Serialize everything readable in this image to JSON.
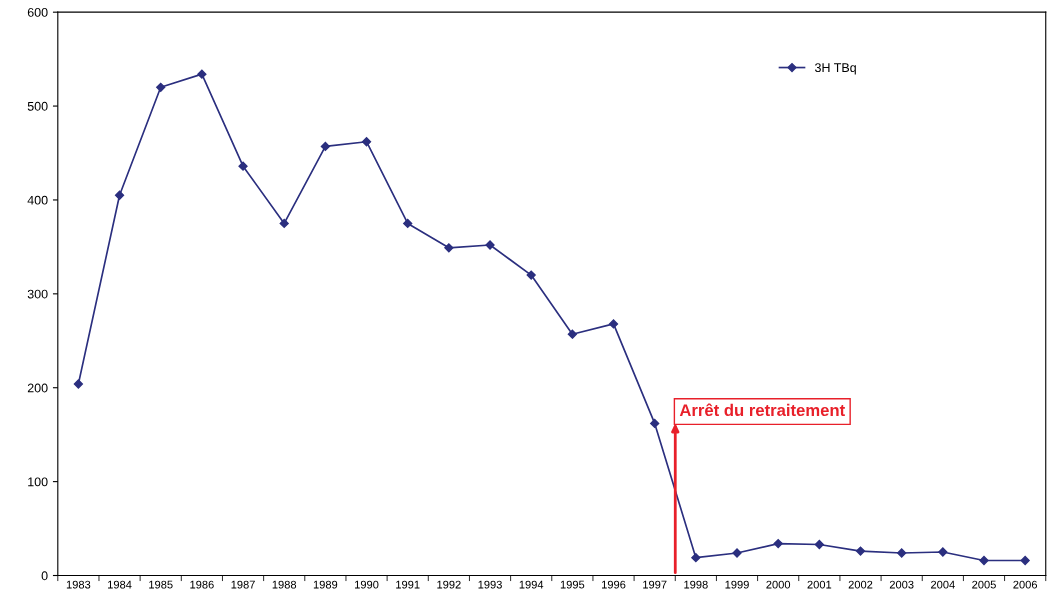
{
  "chart_data": {
    "type": "line",
    "categories": [
      "1983",
      "1984",
      "1985",
      "1986",
      "1987",
      "1988",
      "1989",
      "1990",
      "1991",
      "1992",
      "1993",
      "1994",
      "1995",
      "1996",
      "1997",
      "1998",
      "1999",
      "2000",
      "2001",
      "2002",
      "2003",
      "2004",
      "2005",
      "2006"
    ],
    "series": [
      {
        "name": "3H TBq",
        "color": "#2b2f7f",
        "values": [
          204,
          405,
          520,
          534,
          436,
          375,
          457,
          462,
          375,
          349,
          352,
          320,
          257,
          268,
          162,
          19,
          24,
          34,
          33,
          26,
          24,
          25,
          16,
          16
        ]
      }
    ],
    "ylim": [
      0,
      600
    ],
    "yticks": [
      0,
      100,
      200,
      300,
      400,
      500,
      600
    ],
    "annotations": [
      "Arrêt du retraitement"
    ],
    "marker": "diamond",
    "line_style": "solid",
    "grid": false,
    "legend": "top right"
  }
}
